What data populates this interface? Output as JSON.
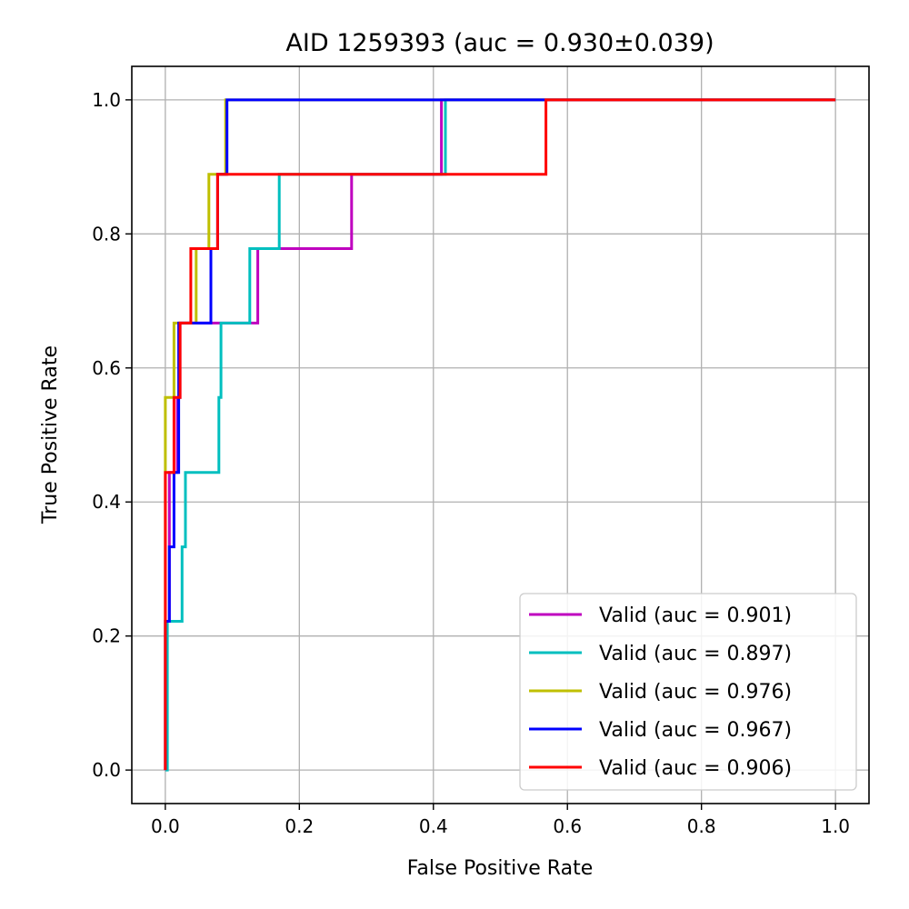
{
  "chart_data": {
    "type": "line",
    "title": "AID 1259393 (auc = 0.930±0.039)",
    "xlabel": "False Positive Rate",
    "ylabel": "True Positive Rate",
    "xlim": [
      -0.05,
      1.05
    ],
    "ylim": [
      -0.05,
      1.05
    ],
    "xticks": [
      "0.0",
      "0.2",
      "0.4",
      "0.6",
      "0.8",
      "1.0"
    ],
    "yticks": [
      "0.0",
      "0.2",
      "0.4",
      "0.6",
      "0.8",
      "1.0"
    ],
    "grid": true,
    "legend_position": "lower-right",
    "series": [
      {
        "name": "Valid (auc = 0.901)",
        "color": "#bf00bf",
        "x": [
          0,
          0,
          0.006,
          0.006,
          0.018,
          0.018,
          0.022,
          0.022,
          0.038,
          0.038,
          0.138,
          0.138,
          0.148,
          0.148,
          0.278,
          0.278,
          0.412,
          0.412,
          1.0
        ],
        "y": [
          0,
          0.222,
          0.222,
          0.444,
          0.444,
          0.556,
          0.556,
          0.667,
          0.667,
          0.667,
          0.667,
          0.778,
          0.778,
          0.778,
          0.778,
          0.889,
          0.889,
          1.0,
          1.0
        ]
      },
      {
        "name": "Valid (auc = 0.897)",
        "color": "#00bfbf",
        "x": [
          0,
          0.003,
          0.003,
          0.025,
          0.025,
          0.03,
          0.03,
          0.08,
          0.08,
          0.083,
          0.083,
          0.126,
          0.126,
          0.17,
          0.17,
          0.418,
          0.418,
          1.0
        ],
        "y": [
          0,
          0,
          0.222,
          0.222,
          0.333,
          0.333,
          0.444,
          0.444,
          0.556,
          0.556,
          0.667,
          0.667,
          0.778,
          0.778,
          0.889,
          0.889,
          1.0,
          1.0
        ]
      },
      {
        "name": "Valid (auc = 0.976)",
        "color": "#bfbf00",
        "x": [
          0,
          0,
          0.013,
          0.013,
          0.046,
          0.046,
          0.065,
          0.065,
          0.09,
          0.09,
          1.0
        ],
        "y": [
          0,
          0.556,
          0.556,
          0.667,
          0.667,
          0.778,
          0.778,
          0.889,
          0.889,
          1.0,
          1.0
        ]
      },
      {
        "name": "Valid (auc = 0.967)",
        "color": "#0000ff",
        "x": [
          0,
          0,
          0.006,
          0.006,
          0.013,
          0.013,
          0.02,
          0.02,
          0.068,
          0.068,
          0.078,
          0.078,
          0.092,
          0.092,
          1.0
        ],
        "y": [
          0,
          0.222,
          0.222,
          0.333,
          0.333,
          0.444,
          0.444,
          0.667,
          0.667,
          0.778,
          0.778,
          0.889,
          0.889,
          1.0,
          1.0
        ]
      },
      {
        "name": "Valid (auc = 0.906)",
        "color": "#ff0000",
        "x": [
          0,
          0,
          0.013,
          0.013,
          0.022,
          0.022,
          0.038,
          0.038,
          0.078,
          0.078,
          0.138,
          0.138,
          0.568,
          0.568,
          1.0
        ],
        "y": [
          0,
          0.444,
          0.444,
          0.556,
          0.556,
          0.667,
          0.667,
          0.778,
          0.778,
          0.889,
          0.889,
          0.889,
          0.889,
          1.0,
          1.0
        ]
      }
    ]
  }
}
